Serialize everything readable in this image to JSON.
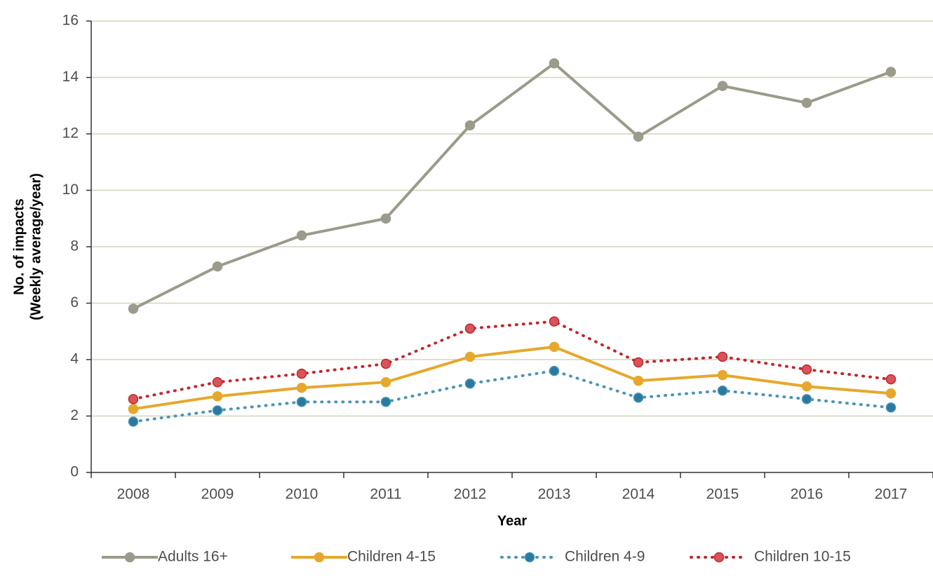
{
  "chart_data": {
    "type": "line",
    "x_label": "Year",
    "y_label": [
      "No. of impacts",
      "(Weekly average/year)"
    ],
    "categories": [
      "2008",
      "2009",
      "2010",
      "2011",
      "2012",
      "2013",
      "2014",
      "2015",
      "2016",
      "2017"
    ],
    "series": [
      {
        "name": "Adults 16+",
        "color": "#9b9a8b",
        "marker_color": "#9b9a8b",
        "style": "solid",
        "values": [
          5.8,
          7.3,
          8.4,
          9.0,
          12.3,
          14.5,
          11.9,
          13.7,
          13.1,
          14.2
        ]
      },
      {
        "name": "Children 4-15",
        "color": "#e6a82c",
        "marker_color": "#e6a82c",
        "style": "solid",
        "values": [
          2.25,
          2.7,
          3.0,
          3.2,
          4.1,
          4.45,
          3.25,
          3.45,
          3.05,
          2.8
        ]
      },
      {
        "name": "Children 4-9",
        "color": "#4a95b5",
        "marker_color": "#2a7aa0",
        "style": "dotted",
        "values": [
          1.8,
          2.2,
          2.5,
          2.5,
          3.15,
          3.6,
          2.65,
          2.9,
          2.6,
          2.3
        ]
      },
      {
        "name": "Children 10-15",
        "color": "#c0272d",
        "marker_color": "#d9535b",
        "style": "dotted",
        "values": [
          2.6,
          3.2,
          3.5,
          3.85,
          5.1,
          5.35,
          3.9,
          4.1,
          3.65,
          3.3
        ]
      }
    ],
    "ylim": [
      0,
      16
    ],
    "yticks": [
      0,
      2,
      4,
      6,
      8,
      10,
      12,
      14,
      16
    ],
    "grid": true,
    "legend": "bottom"
  }
}
